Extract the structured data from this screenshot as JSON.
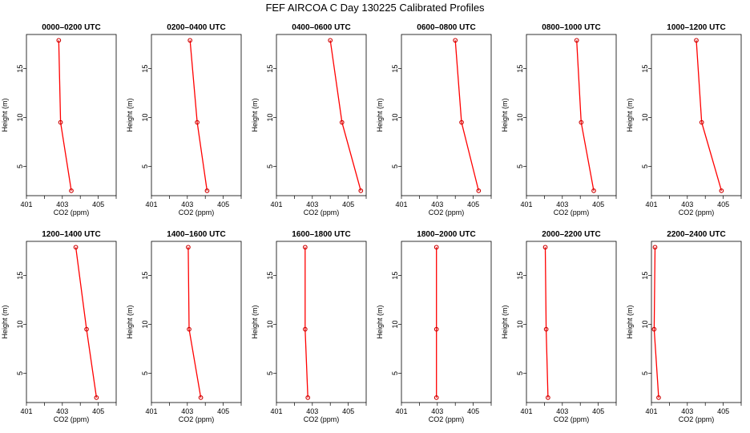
{
  "figure": {
    "title": "FEF AIRCOA C  Day 130225  Calibrated Profiles",
    "line_color": "#ff0000",
    "marker_color": "#cc0000"
  },
  "chart_data": [
    {
      "type": "line",
      "title": "0000–0200 UTC",
      "xlabel": "CO2 (ppm)",
      "ylabel": "Height (m)",
      "xlim": [
        401,
        406
      ],
      "ylim": [
        2,
        18.5
      ],
      "xticks": [
        401,
        403,
        405
      ],
      "yticks": [
        5,
        10,
        15
      ],
      "x": [
        402.8,
        402.9,
        403.5
      ],
      "y": [
        17.9,
        9.5,
        2.5
      ]
    },
    {
      "type": "line",
      "title": "0200–0400 UTC",
      "xlabel": "CO2 (ppm)",
      "ylabel": "Height (m)",
      "xlim": [
        401,
        406
      ],
      "ylim": [
        2,
        18.5
      ],
      "xticks": [
        401,
        403,
        405
      ],
      "yticks": [
        5,
        10,
        15
      ],
      "x": [
        403.15,
        403.55,
        404.1
      ],
      "y": [
        17.9,
        9.5,
        2.5
      ]
    },
    {
      "type": "line",
      "title": "0400–0600 UTC",
      "xlabel": "CO2 (ppm)",
      "ylabel": "Height (m)",
      "xlim": [
        401,
        406
      ],
      "ylim": [
        2,
        18.5
      ],
      "xticks": [
        401,
        403,
        405
      ],
      "yticks": [
        5,
        10,
        15
      ],
      "x": [
        404.0,
        404.65,
        405.7
      ],
      "y": [
        17.9,
        9.5,
        2.5
      ]
    },
    {
      "type": "line",
      "title": "0600–0800 UTC",
      "xlabel": "CO2 (ppm)",
      "ylabel": "Height (m)",
      "xlim": [
        401,
        406
      ],
      "ylim": [
        2,
        18.5
      ],
      "xticks": [
        401,
        403,
        405
      ],
      "yticks": [
        5,
        10,
        15
      ],
      "x": [
        404.0,
        404.35,
        405.3
      ],
      "y": [
        17.9,
        9.5,
        2.5
      ]
    },
    {
      "type": "line",
      "title": "0800–1000 UTC",
      "xlabel": "CO2 (ppm)",
      "ylabel": "Height (m)",
      "xlim": [
        401,
        406
      ],
      "ylim": [
        2,
        18.5
      ],
      "xticks": [
        401,
        403,
        405
      ],
      "yticks": [
        5,
        10,
        15
      ],
      "x": [
        403.8,
        404.05,
        404.75
      ],
      "y": [
        17.9,
        9.5,
        2.5
      ]
    },
    {
      "type": "line",
      "title": "1000–1200 UTC",
      "xlabel": "CO2 (ppm)",
      "ylabel": "Height (m)",
      "xlim": [
        401,
        406
      ],
      "ylim": [
        2,
        18.5
      ],
      "xticks": [
        401,
        403,
        405
      ],
      "yticks": [
        5,
        10,
        15
      ],
      "x": [
        403.5,
        403.8,
        404.9
      ],
      "y": [
        17.9,
        9.5,
        2.5
      ]
    },
    {
      "type": "line",
      "title": "1200–1400 UTC",
      "xlabel": "CO2 (ppm)",
      "ylabel": "Height (m)",
      "xlim": [
        401,
        406
      ],
      "ylim": [
        2,
        18.5
      ],
      "xticks": [
        401,
        403,
        405
      ],
      "yticks": [
        5,
        10,
        15
      ],
      "x": [
        403.75,
        404.35,
        404.9
      ],
      "y": [
        17.9,
        9.5,
        2.5
      ]
    },
    {
      "type": "line",
      "title": "1400–1600 UTC",
      "xlabel": "CO2 (ppm)",
      "ylabel": "Height (m)",
      "xlim": [
        401,
        406
      ],
      "ylim": [
        2,
        18.5
      ],
      "xticks": [
        401,
        403,
        405
      ],
      "yticks": [
        5,
        10,
        15
      ],
      "x": [
        403.05,
        403.1,
        403.75
      ],
      "y": [
        17.9,
        9.5,
        2.5
      ]
    },
    {
      "type": "line",
      "title": "1600–1800 UTC",
      "xlabel": "CO2 (ppm)",
      "ylabel": "Height (m)",
      "xlim": [
        401,
        406
      ],
      "ylim": [
        2,
        18.5
      ],
      "xticks": [
        401,
        403,
        405
      ],
      "yticks": [
        5,
        10,
        15
      ],
      "x": [
        402.6,
        402.6,
        402.75
      ],
      "y": [
        17.9,
        9.5,
        2.5
      ]
    },
    {
      "type": "line",
      "title": "1800–2000 UTC",
      "xlabel": "CO2 (ppm)",
      "ylabel": "Height (m)",
      "xlim": [
        401,
        406
      ],
      "ylim": [
        2,
        18.5
      ],
      "xticks": [
        401,
        403,
        405
      ],
      "yticks": [
        5,
        10,
        15
      ],
      "x": [
        402.95,
        402.95,
        402.95
      ],
      "y": [
        17.9,
        9.5,
        2.5
      ]
    },
    {
      "type": "line",
      "title": "2000–2200 UTC",
      "xlabel": "CO2 (ppm)",
      "ylabel": "Height (m)",
      "xlim": [
        401,
        406
      ],
      "ylim": [
        2,
        18.5
      ],
      "xticks": [
        401,
        403,
        405
      ],
      "yticks": [
        5,
        10,
        15
      ],
      "x": [
        402.05,
        402.1,
        402.2
      ],
      "y": [
        17.9,
        9.5,
        2.5
      ]
    },
    {
      "type": "line",
      "title": "2200–2400 UTC",
      "xlabel": "CO2 (ppm)",
      "ylabel": "Height (m)",
      "xlim": [
        401,
        406
      ],
      "ylim": [
        2,
        18.5
      ],
      "xticks": [
        401,
        403,
        405
      ],
      "yticks": [
        5,
        10,
        15
      ],
      "x": [
        401.2,
        401.15,
        401.4
      ],
      "y": [
        17.9,
        9.5,
        2.5
      ]
    }
  ]
}
